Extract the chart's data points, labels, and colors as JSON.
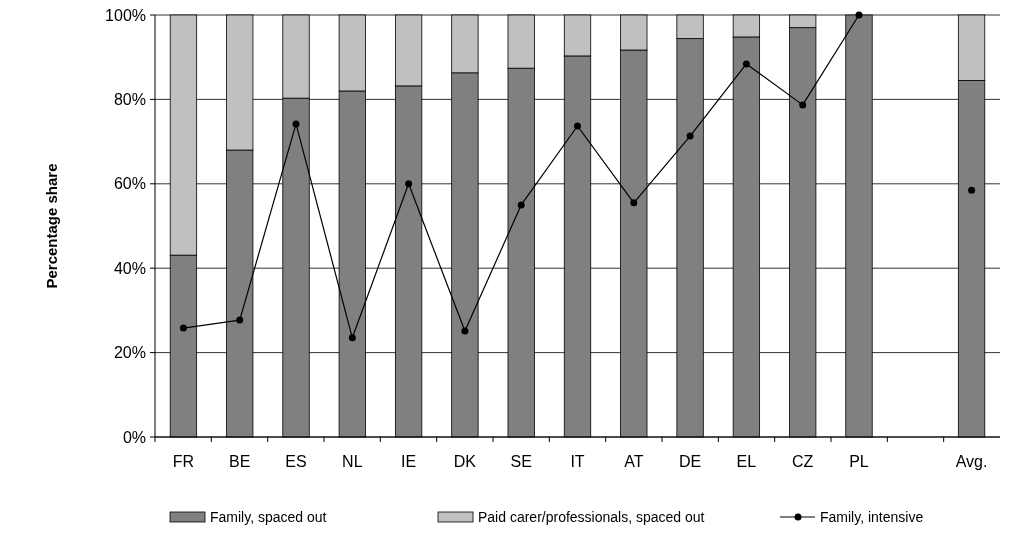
{
  "chart_data": {
    "type": "bar",
    "stacked": true,
    "ylabel": "Percentage share",
    "categories": [
      "FR",
      "BE",
      "ES",
      "NL",
      "IE",
      "DK",
      "SE",
      "IT",
      "AT",
      "DE",
      "EL",
      "CZ",
      "PL",
      null,
      "Avg."
    ],
    "series": [
      {
        "name": "Family, spaced out",
        "color": "#808080",
        "values": [
          43.1,
          68.0,
          80.3,
          82.0,
          83.2,
          86.3,
          87.4,
          90.3,
          91.7,
          94.4,
          94.8,
          97.0,
          100,
          null,
          84.5
        ]
      },
      {
        "name": "Paid carer/professionals, spaced out",
        "color": "#c0c0c0",
        "values": [
          56.9,
          32.0,
          19.7,
          18.0,
          16.8,
          13.7,
          12.6,
          9.7,
          8.3,
          5.6,
          5.2,
          3.0,
          0,
          null,
          15.5
        ]
      },
      {
        "name": "Family, intensive",
        "type": "line",
        "color": "#000000",
        "marker": "circle",
        "values": [
          25.8,
          27.7,
          74.2,
          23.5,
          60.0,
          25.1,
          55.0,
          73.7,
          55.5,
          71.3,
          88.4,
          78.7,
          100,
          null,
          58.5
        ]
      }
    ],
    "ylim": [
      0,
      100
    ],
    "yticks": [
      {
        "value": 0,
        "label": "0%"
      },
      {
        "value": 20,
        "label": "20%"
      },
      {
        "value": 40,
        "label": "40%"
      },
      {
        "value": 60,
        "label": "60%"
      },
      {
        "value": 80,
        "label": "80%"
      },
      {
        "value": 100,
        "label": "100%"
      }
    ],
    "grid": "y",
    "legend": "bottom"
  }
}
